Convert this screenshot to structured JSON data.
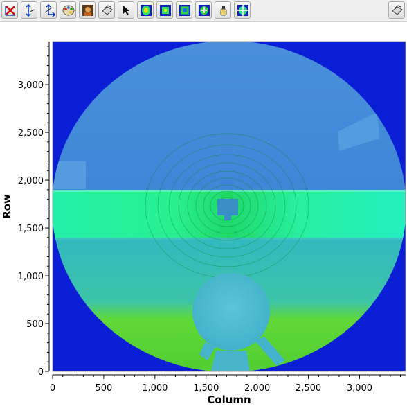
{
  "toolbar": {
    "buttons": [
      {
        "name": "reset-zoom-icon"
      },
      {
        "name": "zoom-y-axis-icon"
      },
      {
        "name": "zoom-xy-icon"
      },
      {
        "name": "colormap-palette-icon"
      },
      {
        "name": "image-display-icon"
      },
      {
        "name": "print-icon"
      },
      {
        "name": "select-pointer-icon"
      },
      {
        "name": "mask-ellipse-icon"
      },
      {
        "name": "mask-rectangle-icon"
      },
      {
        "name": "mask-polygon-icon"
      },
      {
        "name": "mask-brush-icon"
      },
      {
        "name": "pixel-crosshair-icon"
      }
    ],
    "right_button": {
      "name": "save-icon"
    }
  },
  "colors": {
    "background": "#0a1ed6",
    "upper": "#3f88d8",
    "band": "#26f0b0",
    "lower_green": "#4fd03c"
  },
  "chart_data": {
    "type": "heatmap",
    "title": "",
    "xlabel": "Column",
    "ylabel": "Row",
    "xlim": [
      0,
      3450
    ],
    "ylim": [
      0,
      3450
    ],
    "x_ticks": [
      "0",
      "500",
      "1,000",
      "1,500",
      "2,000",
      "2,500",
      "3,000"
    ],
    "y_ticks": [
      "0",
      "500",
      "1,000",
      "1,500",
      "2,000",
      "2,500",
      "3,000"
    ],
    "x_tick_values": [
      0,
      500,
      1000,
      1500,
      2000,
      2500,
      3000
    ],
    "y_tick_values": [
      0,
      500,
      1000,
      1500,
      2000,
      2500,
      3000
    ]
  }
}
